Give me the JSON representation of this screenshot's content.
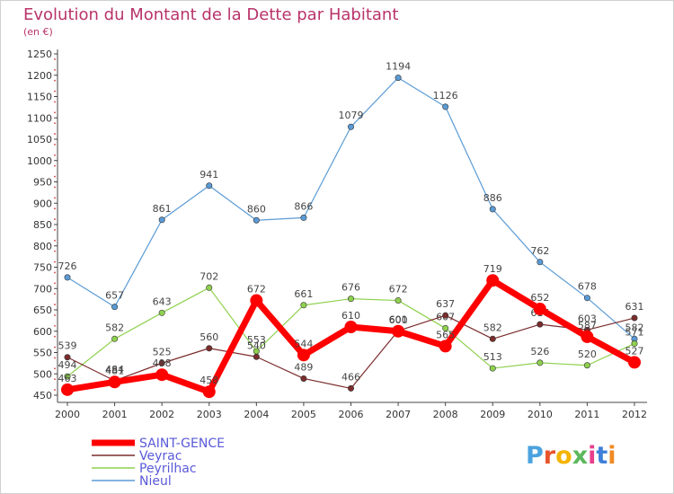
{
  "chart_data": {
    "type": "line",
    "title": "Evolution du Montant de la Dette par Habitant",
    "subtitle": "(en €)",
    "categories": [
      "2000",
      "2001",
      "2002",
      "2003",
      "2004",
      "2005",
      "2006",
      "2007",
      "2008",
      "2009",
      "2010",
      "2011",
      "2012"
    ],
    "ylim": [
      450,
      1250
    ],
    "yticks": [
      450,
      500,
      550,
      600,
      650,
      700,
      750,
      800,
      850,
      900,
      950,
      1000,
      1050,
      1100,
      1150,
      1200,
      1250
    ],
    "grid": false,
    "legend_position": "bottom-left",
    "series": [
      {
        "name": "Nieul",
        "color": "#5b9bd5",
        "values": [
          726,
          657,
          861,
          941,
          860,
          866,
          1079,
          1194,
          1126,
          886,
          762,
          678,
          582
        ]
      },
      {
        "name": "Peyrilhac",
        "color": "#8fd14f",
        "values": [
          494,
          582,
          643,
          702,
          553,
          661,
          676,
          672,
          607,
          513,
          526,
          520,
          571
        ]
      },
      {
        "name": "Veyrac",
        "color": "#7b2c2c",
        "values": [
          539,
          484,
          525,
          560,
          540,
          489,
          466,
          601,
          637,
          582,
          616,
          603,
          631
        ]
      },
      {
        "name": "SAINT-GENCE",
        "color": "#ff0000",
        "values": [
          463,
          481,
          498,
          458,
          672,
          544,
          610,
          600,
          565,
          719,
          652,
          587,
          527
        ]
      }
    ]
  },
  "logo_text": "Proxiti"
}
